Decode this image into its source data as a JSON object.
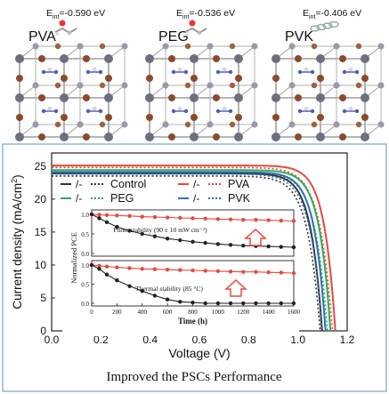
{
  "top_panels": [
    {
      "name": "PVA",
      "energy": "E_int=-0.590 eV",
      "energy_main": "E",
      "energy_sub": "int",
      "energy_rest": "=-0.590 eV"
    },
    {
      "name": "PEG",
      "energy": "E_int=-0.536 eV",
      "energy_main": "E",
      "energy_sub": "int",
      "energy_rest": "=-0.536 eV"
    },
    {
      "name": "PVK",
      "energy": "E_int=-0.406 eV",
      "energy_main": "E",
      "energy_sub": "int",
      "energy_rest": "=-0.406 eV"
    }
  ],
  "caption": "Improved the PSCs Performance",
  "chart_data": [
    {
      "type": "line",
      "xlabel": "Voltage (V)",
      "ylabel": "Current density (mA/cm²)",
      "ylabel_main": "Current density (mA/cm",
      "ylabel_sup": "2",
      "ylabel_end": ")",
      "xlim": [
        0.0,
        1.2
      ],
      "ylim": [
        0,
        27
      ],
      "x_ticks": [
        "0.0",
        "0.2",
        "0.4",
        "0.6",
        "0.8",
        "1.0",
        "1.2"
      ],
      "y_ticks": [
        "0",
        "5",
        "10",
        "15",
        "20",
        "25"
      ],
      "x_tick_values": [
        0.0,
        0.2,
        0.4,
        0.6,
        0.8,
        1.0,
        1.2
      ],
      "y_tick_values": [
        0,
        5,
        10,
        15,
        20,
        25
      ],
      "legend_location": "upper-center",
      "series": [
        {
          "name": "Control",
          "color": "#333333",
          "jsc": 23.9,
          "voc": 1.098,
          "dashed_jsc": 23.5,
          "dashed_voc": 1.09
        },
        {
          "name": "PVA",
          "color": "#e8483d",
          "jsc": 25.1,
          "voc": 1.152,
          "dashed_jsc": 24.8,
          "dashed_voc": 1.14
        },
        {
          "name": "PEG",
          "color": "#2eae5a",
          "jsc": 24.4,
          "voc": 1.132,
          "dashed_jsc": 24.1,
          "dashed_voc": 1.12
        },
        {
          "name": "PVK",
          "color": "#2f6fba",
          "jsc": 24.1,
          "voc": 1.112,
          "dashed_jsc": 23.8,
          "dashed_voc": 1.1
        }
      ],
      "legend_entries": [
        {
          "prefix": "/-",
          "name": "Control"
        },
        {
          "prefix": "/-",
          "name": "PVA"
        },
        {
          "prefix": "/-",
          "name": "PEG"
        },
        {
          "prefix": "/-",
          "name": "PVK"
        }
      ]
    },
    {
      "type": "line",
      "ylabel": "Normalized PCE",
      "xlabel": "Time (h)",
      "xlim": [
        0,
        1600
      ],
      "x_ticks": [
        "0",
        "200",
        "400",
        "600",
        "800",
        "1000",
        "1200",
        "1400",
        "1600"
      ],
      "x_tick_values": [
        0,
        200,
        400,
        600,
        800,
        1000,
        1200,
        1400,
        1600
      ],
      "panels": [
        {
          "annotation": "Photo stability (90 ± 10 mW cm⁻²)",
          "y_ticks": [
            "0.0",
            "0.5",
            "1.0"
          ],
          "y_tick_values": [
            0.0,
            0.5,
            1.0
          ],
          "series": [
            {
              "color": "#e8483d",
              "x": [
                0,
                60,
                120,
                200,
                300,
                400,
                500,
                600,
                700,
                800,
                900,
                1000,
                1100,
                1200,
                1300,
                1400,
                1500,
                1600
              ],
              "y": [
                1.0,
                0.99,
                0.98,
                0.97,
                0.96,
                0.94,
                0.93,
                0.92,
                0.91,
                0.9,
                0.89,
                0.88,
                0.87,
                0.86,
                0.86,
                0.85,
                0.84,
                0.83
              ]
            },
            {
              "color": "#222222",
              "x": [
                0,
                60,
                120,
                200,
                300,
                400,
                500,
                600,
                700,
                800,
                900,
                1000,
                1100,
                1200,
                1300,
                1400,
                1500,
                1600
              ],
              "y": [
                1.0,
                0.9,
                0.8,
                0.68,
                0.58,
                0.5,
                0.44,
                0.38,
                0.34,
                0.3,
                0.27,
                0.24,
                0.22,
                0.2,
                0.19,
                0.18,
                0.17,
                0.16
              ]
            }
          ]
        },
        {
          "annotation": "Thermal stability (85 °C)",
          "y_ticks": [
            "0.0",
            "0.5",
            "1.0"
          ],
          "y_tick_values": [
            0.0,
            0.5,
            1.0
          ],
          "series": [
            {
              "color": "#e8483d",
              "x": [
                0,
                60,
                120,
                200,
                300,
                400,
                500,
                600,
                700,
                800,
                900,
                1000,
                1100,
                1200,
                1300,
                1400,
                1500,
                1600
              ],
              "y": [
                1.0,
                0.98,
                0.96,
                0.94,
                0.92,
                0.9,
                0.89,
                0.88,
                0.87,
                0.86,
                0.85,
                0.84,
                0.83,
                0.82,
                0.82,
                0.81,
                0.8,
                0.79
              ]
            },
            {
              "color": "#222222",
              "x": [
                0,
                60,
                120,
                200,
                300,
                400,
                500,
                600,
                700,
                800,
                900,
                1000,
                1100,
                1200,
                1300,
                1400,
                1500,
                1600
              ],
              "y": [
                1.0,
                0.9,
                0.75,
                0.6,
                0.45,
                0.32,
                0.2,
                0.1,
                0.04,
                0.02,
                0.0,
                0.0,
                0.0,
                0.0,
                0.0,
                0.0,
                0.0,
                0.0
              ]
            }
          ]
        }
      ]
    }
  ]
}
